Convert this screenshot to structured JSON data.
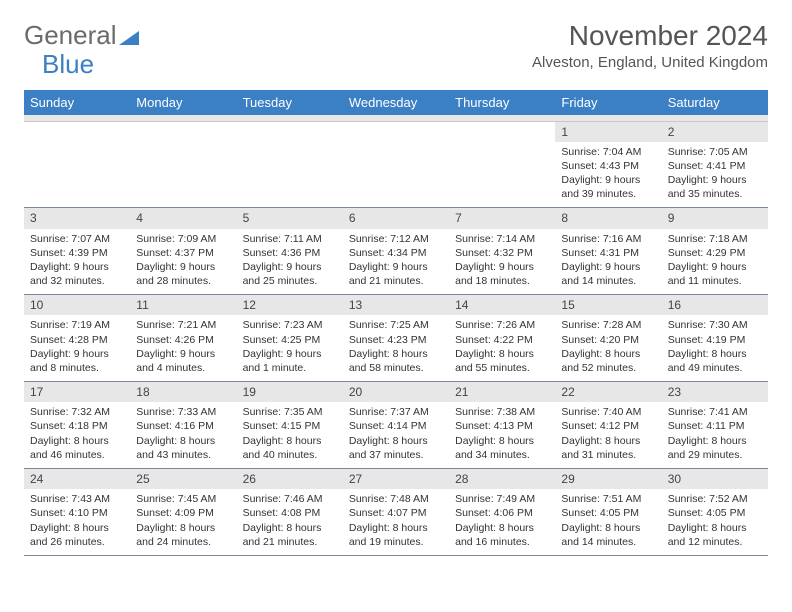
{
  "logo": {
    "text1": "General",
    "text2": "Blue"
  },
  "title": "November 2024",
  "location": "Alveston, England, United Kingdom",
  "colors": {
    "header_bg": "#3b7fc4",
    "header_text": "#ffffff",
    "daynum_bg": "#e7e7e7",
    "border": "#7a8a9a",
    "text": "#333333",
    "logo_gray": "#6b6b6b",
    "logo_blue": "#3b7fc4"
  },
  "day_labels": [
    "Sunday",
    "Monday",
    "Tuesday",
    "Wednesday",
    "Thursday",
    "Friday",
    "Saturday"
  ],
  "weeks": [
    [
      {
        "n": "",
        "sr": "",
        "ss": "",
        "d1": "",
        "d2": ""
      },
      {
        "n": "",
        "sr": "",
        "ss": "",
        "d1": "",
        "d2": ""
      },
      {
        "n": "",
        "sr": "",
        "ss": "",
        "d1": "",
        "d2": ""
      },
      {
        "n": "",
        "sr": "",
        "ss": "",
        "d1": "",
        "d2": ""
      },
      {
        "n": "",
        "sr": "",
        "ss": "",
        "d1": "",
        "d2": ""
      },
      {
        "n": "1",
        "sr": "Sunrise: 7:04 AM",
        "ss": "Sunset: 4:43 PM",
        "d1": "Daylight: 9 hours",
        "d2": "and 39 minutes."
      },
      {
        "n": "2",
        "sr": "Sunrise: 7:05 AM",
        "ss": "Sunset: 4:41 PM",
        "d1": "Daylight: 9 hours",
        "d2": "and 35 minutes."
      }
    ],
    [
      {
        "n": "3",
        "sr": "Sunrise: 7:07 AM",
        "ss": "Sunset: 4:39 PM",
        "d1": "Daylight: 9 hours",
        "d2": "and 32 minutes."
      },
      {
        "n": "4",
        "sr": "Sunrise: 7:09 AM",
        "ss": "Sunset: 4:37 PM",
        "d1": "Daylight: 9 hours",
        "d2": "and 28 minutes."
      },
      {
        "n": "5",
        "sr": "Sunrise: 7:11 AM",
        "ss": "Sunset: 4:36 PM",
        "d1": "Daylight: 9 hours",
        "d2": "and 25 minutes."
      },
      {
        "n": "6",
        "sr": "Sunrise: 7:12 AM",
        "ss": "Sunset: 4:34 PM",
        "d1": "Daylight: 9 hours",
        "d2": "and 21 minutes."
      },
      {
        "n": "7",
        "sr": "Sunrise: 7:14 AM",
        "ss": "Sunset: 4:32 PM",
        "d1": "Daylight: 9 hours",
        "d2": "and 18 minutes."
      },
      {
        "n": "8",
        "sr": "Sunrise: 7:16 AM",
        "ss": "Sunset: 4:31 PM",
        "d1": "Daylight: 9 hours",
        "d2": "and 14 minutes."
      },
      {
        "n": "9",
        "sr": "Sunrise: 7:18 AM",
        "ss": "Sunset: 4:29 PM",
        "d1": "Daylight: 9 hours",
        "d2": "and 11 minutes."
      }
    ],
    [
      {
        "n": "10",
        "sr": "Sunrise: 7:19 AM",
        "ss": "Sunset: 4:28 PM",
        "d1": "Daylight: 9 hours",
        "d2": "and 8 minutes."
      },
      {
        "n": "11",
        "sr": "Sunrise: 7:21 AM",
        "ss": "Sunset: 4:26 PM",
        "d1": "Daylight: 9 hours",
        "d2": "and 4 minutes."
      },
      {
        "n": "12",
        "sr": "Sunrise: 7:23 AM",
        "ss": "Sunset: 4:25 PM",
        "d1": "Daylight: 9 hours",
        "d2": "and 1 minute."
      },
      {
        "n": "13",
        "sr": "Sunrise: 7:25 AM",
        "ss": "Sunset: 4:23 PM",
        "d1": "Daylight: 8 hours",
        "d2": "and 58 minutes."
      },
      {
        "n": "14",
        "sr": "Sunrise: 7:26 AM",
        "ss": "Sunset: 4:22 PM",
        "d1": "Daylight: 8 hours",
        "d2": "and 55 minutes."
      },
      {
        "n": "15",
        "sr": "Sunrise: 7:28 AM",
        "ss": "Sunset: 4:20 PM",
        "d1": "Daylight: 8 hours",
        "d2": "and 52 minutes."
      },
      {
        "n": "16",
        "sr": "Sunrise: 7:30 AM",
        "ss": "Sunset: 4:19 PM",
        "d1": "Daylight: 8 hours",
        "d2": "and 49 minutes."
      }
    ],
    [
      {
        "n": "17",
        "sr": "Sunrise: 7:32 AM",
        "ss": "Sunset: 4:18 PM",
        "d1": "Daylight: 8 hours",
        "d2": "and 46 minutes."
      },
      {
        "n": "18",
        "sr": "Sunrise: 7:33 AM",
        "ss": "Sunset: 4:16 PM",
        "d1": "Daylight: 8 hours",
        "d2": "and 43 minutes."
      },
      {
        "n": "19",
        "sr": "Sunrise: 7:35 AM",
        "ss": "Sunset: 4:15 PM",
        "d1": "Daylight: 8 hours",
        "d2": "and 40 minutes."
      },
      {
        "n": "20",
        "sr": "Sunrise: 7:37 AM",
        "ss": "Sunset: 4:14 PM",
        "d1": "Daylight: 8 hours",
        "d2": "and 37 minutes."
      },
      {
        "n": "21",
        "sr": "Sunrise: 7:38 AM",
        "ss": "Sunset: 4:13 PM",
        "d1": "Daylight: 8 hours",
        "d2": "and 34 minutes."
      },
      {
        "n": "22",
        "sr": "Sunrise: 7:40 AM",
        "ss": "Sunset: 4:12 PM",
        "d1": "Daylight: 8 hours",
        "d2": "and 31 minutes."
      },
      {
        "n": "23",
        "sr": "Sunrise: 7:41 AM",
        "ss": "Sunset: 4:11 PM",
        "d1": "Daylight: 8 hours",
        "d2": "and 29 minutes."
      }
    ],
    [
      {
        "n": "24",
        "sr": "Sunrise: 7:43 AM",
        "ss": "Sunset: 4:10 PM",
        "d1": "Daylight: 8 hours",
        "d2": "and 26 minutes."
      },
      {
        "n": "25",
        "sr": "Sunrise: 7:45 AM",
        "ss": "Sunset: 4:09 PM",
        "d1": "Daylight: 8 hours",
        "d2": "and 24 minutes."
      },
      {
        "n": "26",
        "sr": "Sunrise: 7:46 AM",
        "ss": "Sunset: 4:08 PM",
        "d1": "Daylight: 8 hours",
        "d2": "and 21 minutes."
      },
      {
        "n": "27",
        "sr": "Sunrise: 7:48 AM",
        "ss": "Sunset: 4:07 PM",
        "d1": "Daylight: 8 hours",
        "d2": "and 19 minutes."
      },
      {
        "n": "28",
        "sr": "Sunrise: 7:49 AM",
        "ss": "Sunset: 4:06 PM",
        "d1": "Daylight: 8 hours",
        "d2": "and 16 minutes."
      },
      {
        "n": "29",
        "sr": "Sunrise: 7:51 AM",
        "ss": "Sunset: 4:05 PM",
        "d1": "Daylight: 8 hours",
        "d2": "and 14 minutes."
      },
      {
        "n": "30",
        "sr": "Sunrise: 7:52 AM",
        "ss": "Sunset: 4:05 PM",
        "d1": "Daylight: 8 hours",
        "d2": "and 12 minutes."
      }
    ]
  ]
}
